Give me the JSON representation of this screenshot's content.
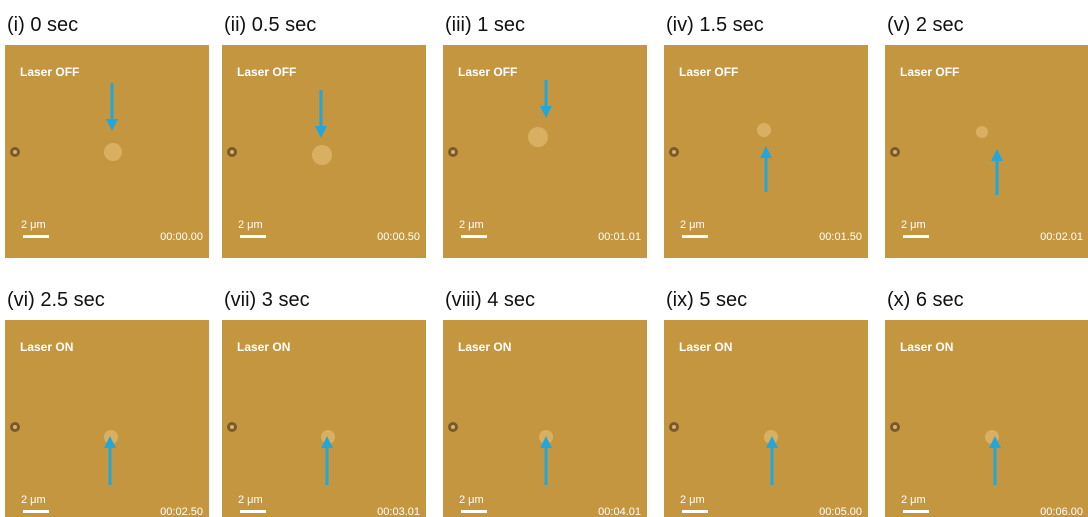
{
  "panels": [
    {
      "label": "(i) 0 sec",
      "laser": "Laser OFF",
      "scale": "2 μm",
      "time": "00:00.00"
    },
    {
      "label": "(ii) 0.5 sec",
      "laser": "Laser OFF",
      "scale": "2 μm",
      "time": "00:00.50"
    },
    {
      "label": "(iii) 1 sec",
      "laser": "Laser OFF",
      "scale": "2 μm",
      "time": "00:01.01"
    },
    {
      "label": "(iv) 1.5 sec",
      "laser": "Laser OFF",
      "scale": "2 μm",
      "time": "00:01.50"
    },
    {
      "label": "(v) 2 sec",
      "laser": "Laser OFF",
      "scale": "2 μm",
      "time": "00:02.01"
    },
    {
      "label": "(vi) 2.5 sec",
      "laser": "Laser ON",
      "scale": "2 μm",
      "time": "00:02.50"
    },
    {
      "label": "(vii) 3 sec",
      "laser": "Laser ON",
      "scale": "2 μm",
      "time": "00:03.01"
    },
    {
      "label": "(viii) 4 sec",
      "laser": "Laser ON",
      "scale": "2 μm",
      "time": "00:04.01"
    },
    {
      "label": "(ix) 5 sec",
      "laser": "Laser ON",
      "scale": "2 μm",
      "time": "00:05.00"
    },
    {
      "label": "(x) 6 sec",
      "laser": "Laser ON",
      "scale": "2 μm",
      "time": "00:06.00"
    }
  ]
}
